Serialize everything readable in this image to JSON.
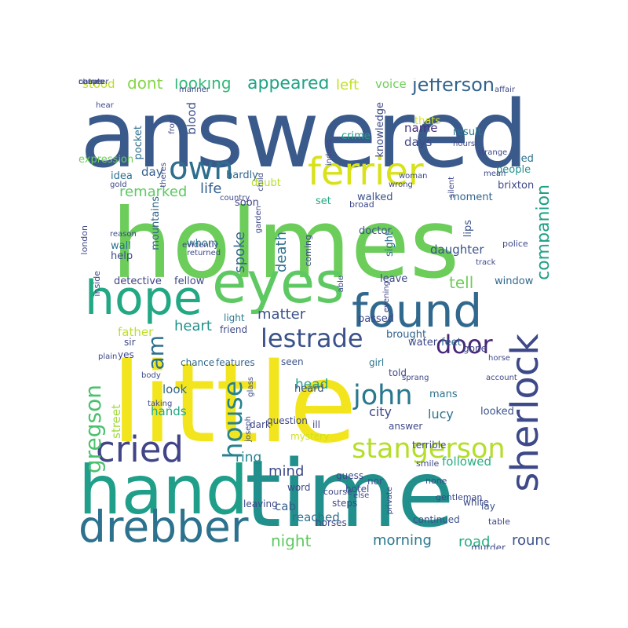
{
  "words": [
    {
      "text": "holmes",
      "color": "#6ccd5a"
    },
    {
      "text": "little",
      "color": "#f2e51d"
    },
    {
      "text": "answered",
      "color": "#3a5a8c"
    },
    {
      "text": "time",
      "color": "#21908d"
    },
    {
      "text": "hand",
      "color": "#1f9e89"
    },
    {
      "text": "eyes",
      "color": "#5ec962"
    },
    {
      "text": "hope",
      "color": "#22a884"
    },
    {
      "text": "found",
      "color": "#31688e"
    },
    {
      "text": "ferrier",
      "color": "#d8e219"
    },
    {
      "text": "sherlock",
      "color": "#3e4989"
    },
    {
      "text": "drebber",
      "color": "#2c728e"
    },
    {
      "text": "cried",
      "color": "#414487"
    },
    {
      "text": "own",
      "color": "#2e6e8e"
    },
    {
      "text": "stangerson",
      "color": "#b5de2b"
    },
    {
      "text": "lestrade",
      "color": "#3b528b"
    },
    {
      "text": "john",
      "color": "#2a788e"
    },
    {
      "text": "door",
      "color": "#482878"
    },
    {
      "text": "house",
      "color": "#26828e"
    },
    {
      "text": "gregson",
      "color": "#4ac16d"
    },
    {
      "text": "jefferson",
      "color": "#33638d"
    },
    {
      "text": "appeared",
      "color": "#20a386"
    },
    {
      "text": "looking",
      "color": "#35b779"
    },
    {
      "text": "dont",
      "color": "#86d549"
    },
    {
      "text": "companion",
      "color": "#1fa187"
    },
    {
      "text": "am",
      "color": "#2d708e"
    },
    {
      "text": "tell",
      "color": "#6ece58"
    },
    {
      "text": "night",
      "color": "#5ec962"
    },
    {
      "text": "road",
      "color": "#28ae80"
    },
    {
      "text": "morning",
      "color": "#2a788e"
    },
    {
      "text": "round",
      "color": "#3b528b"
    },
    {
      "text": "life",
      "color": "#355f8d"
    },
    {
      "text": "mind",
      "color": "#3e4a89"
    },
    {
      "text": "spoke",
      "color": "#31688e"
    },
    {
      "text": "death",
      "color": "#2d708e"
    },
    {
      "text": "ring",
      "color": "#25848e"
    },
    {
      "text": "remarked",
      "color": "#5ec962"
    },
    {
      "text": "matter",
      "color": "#3b528b"
    },
    {
      "text": "heart",
      "color": "#21918c"
    },
    {
      "text": "head",
      "color": "#20a386"
    },
    {
      "text": "lucy",
      "color": "#2c728e"
    },
    {
      "text": "city",
      "color": "#3e4989"
    },
    {
      "text": "left",
      "color": "#c2df23"
    },
    {
      "text": "stood",
      "color": "#bddf26"
    },
    {
      "text": "voice",
      "color": "#6ece58"
    },
    {
      "text": "day",
      "color": "#355f8d"
    },
    {
      "text": "hands",
      "color": "#22a785"
    },
    {
      "text": "street",
      "color": "#9fda3a"
    },
    {
      "text": "father",
      "color": "#bddf26"
    },
    {
      "text": "daughter",
      "color": "#3b528b"
    },
    {
      "text": "followed",
      "color": "#28ae80"
    },
    {
      "text": "cab",
      "color": "#355f8d"
    },
    {
      "text": "reached",
      "color": "#2c728e"
    },
    {
      "text": "look",
      "color": "#31688e"
    },
    {
      "text": "name",
      "color": "#46327e"
    },
    {
      "text": "days",
      "color": "#3e4989"
    },
    {
      "text": "blood",
      "color": "#3b528b"
    },
    {
      "text": "pocket",
      "color": "#2d708e"
    },
    {
      "text": "knowledge",
      "color": "#3e4989"
    },
    {
      "text": "crime",
      "color": "#1f9e89"
    },
    {
      "text": "thats",
      "color": "#d8e219"
    },
    {
      "text": "result",
      "color": "#2a788e"
    },
    {
      "text": "expression",
      "color": "#6ece58"
    },
    {
      "text": "hardly",
      "color": "#31688e"
    },
    {
      "text": "doubt",
      "color": "#b5de2b"
    },
    {
      "text": "soon",
      "color": "#414487"
    },
    {
      "text": "idea",
      "color": "#2d708e"
    },
    {
      "text": "wall",
      "color": "#2c728e"
    },
    {
      "text": "help",
      "color": "#3e4989"
    },
    {
      "text": "mountains",
      "color": "#33638d"
    },
    {
      "text": "whom",
      "color": "#2a788e"
    },
    {
      "text": "detective",
      "color": "#414487"
    },
    {
      "text": "fellow",
      "color": "#3e4989"
    },
    {
      "text": "walked",
      "color": "#3b528b"
    },
    {
      "text": "set",
      "color": "#22a884"
    },
    {
      "text": "moment",
      "color": "#33638d"
    },
    {
      "text": "brixton",
      "color": "#3e4989"
    },
    {
      "text": "doctor",
      "color": "#3b528b"
    },
    {
      "text": "sight",
      "color": "#2d708e"
    },
    {
      "text": "people",
      "color": "#21918c"
    },
    {
      "text": "led",
      "color": "#2d708e"
    },
    {
      "text": "lips",
      "color": "#3b528b"
    },
    {
      "text": "leave",
      "color": "#3e4989"
    },
    {
      "text": "window",
      "color": "#31688e"
    },
    {
      "text": "light",
      "color": "#2a788e"
    },
    {
      "text": "friend",
      "color": "#3e4989"
    },
    {
      "text": "passed",
      "color": "#3e4989"
    },
    {
      "text": "brought",
      "color": "#33638d"
    },
    {
      "text": "water",
      "color": "#3e4989"
    },
    {
      "text": "feet",
      "color": "#31688e"
    },
    {
      "text": "sir",
      "color": "#3e4989"
    },
    {
      "text": "yes",
      "color": "#3e4989"
    },
    {
      "text": "chance",
      "color": "#31688e"
    },
    {
      "text": "features",
      "color": "#33638d"
    },
    {
      "text": "seen",
      "color": "#3b528b"
    },
    {
      "text": "girl",
      "color": "#2c728e"
    },
    {
      "text": "told",
      "color": "#3e4989"
    },
    {
      "text": "heard",
      "color": "#3b528b"
    },
    {
      "text": "mans",
      "color": "#2c728e"
    },
    {
      "text": "gone",
      "color": "#3e4989"
    },
    {
      "text": "looked",
      "color": "#3b528b"
    },
    {
      "text": "question",
      "color": "#3e4989"
    },
    {
      "text": "dark",
      "color": "#3e4989"
    },
    {
      "text": "ill",
      "color": "#414487"
    },
    {
      "text": "mystery",
      "color": "#d0e11c"
    },
    {
      "text": "answer",
      "color": "#3e4989"
    },
    {
      "text": "terrible",
      "color": "#3e4989"
    },
    {
      "text": "word",
      "color": "#3e4989"
    },
    {
      "text": "nor",
      "color": "#3b528b"
    },
    {
      "text": "none",
      "color": "#3e4989"
    },
    {
      "text": "hotel",
      "color": "#3e4989"
    },
    {
      "text": "steps",
      "color": "#3e4989"
    },
    {
      "text": "guess",
      "color": "#3e4989"
    },
    {
      "text": "course",
      "color": "#3e4989"
    },
    {
      "text": "white",
      "color": "#3e4989"
    },
    {
      "text": "horses",
      "color": "#3e4989"
    },
    {
      "text": "continued",
      "color": "#3b528b"
    },
    {
      "text": "murder",
      "color": "#3e4989"
    },
    {
      "text": "lay",
      "color": "#3b528b"
    },
    {
      "text": "table",
      "color": "#3e4989"
    },
    {
      "text": "smile",
      "color": "#3e4989"
    },
    {
      "text": "private",
      "color": "#3e4989"
    },
    {
      "text": "gentleman",
      "color": "#3e4989"
    },
    {
      "text": "else",
      "color": "#3e4989"
    },
    {
      "text": "leaving",
      "color": "#3e4989"
    },
    {
      "text": "glass",
      "color": "#3e4989"
    },
    {
      "text": "joseph",
      "color": "#3e4989"
    },
    {
      "text": "child",
      "color": "#3e4989"
    },
    {
      "text": "garden",
      "color": "#3e4989"
    },
    {
      "text": "country",
      "color": "#3e4989"
    },
    {
      "text": "coming",
      "color": "#3e4989"
    },
    {
      "text": "able",
      "color": "#3e4989"
    },
    {
      "text": "evening",
      "color": "#3e4989"
    },
    {
      "text": "broad",
      "color": "#3e4989"
    },
    {
      "text": "wrong",
      "color": "#3e4989"
    },
    {
      "text": "silent",
      "color": "#3e4989"
    },
    {
      "text": "woman",
      "color": "#3e4989"
    },
    {
      "text": "mean",
      "color": "#3e4989"
    },
    {
      "text": "strange",
      "color": "#3e4989"
    },
    {
      "text": "hours",
      "color": "#3e4989"
    },
    {
      "text": "indeed",
      "color": "#3e4989"
    },
    {
      "text": "affair",
      "color": "#3e4989"
    },
    {
      "text": "manner",
      "color": "#3e4989"
    },
    {
      "text": "hear",
      "color": "#3e4989"
    },
    {
      "text": "gold",
      "color": "#3e4989"
    },
    {
      "text": "front",
      "color": "#3e4989"
    },
    {
      "text": "theres",
      "color": "#3e4989"
    },
    {
      "text": "london",
      "color": "#3e4989"
    },
    {
      "text": "inside",
      "color": "#3e4989"
    },
    {
      "text": "reason",
      "color": "#3e4989"
    },
    {
      "text": "evidently",
      "color": "#3e4989"
    },
    {
      "text": "returned",
      "color": "#3e4989"
    },
    {
      "text": "track",
      "color": "#3e4989"
    },
    {
      "text": "police",
      "color": "#3e4989"
    },
    {
      "text": "plain",
      "color": "#3e4989"
    },
    {
      "text": "body",
      "color": "#3e4989"
    },
    {
      "text": "taking",
      "color": "#3e4989"
    },
    {
      "text": "sprang",
      "color": "#3e4989"
    },
    {
      "text": "account",
      "color": "#3e4989"
    },
    {
      "text": "horse",
      "color": "#3e4989"
    },
    {
      "text": "chapter",
      "color": "#3e4989"
    },
    {
      "text": "nature",
      "color": "#3e4989"
    },
    {
      "text": "comes",
      "color": "#3e4989"
    }
  ]
}
